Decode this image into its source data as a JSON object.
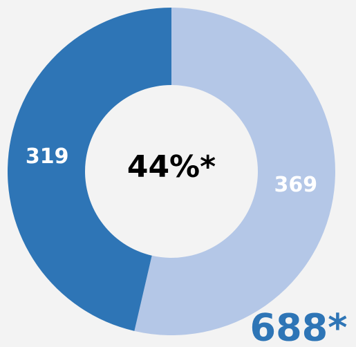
{
  "chart_data": {
    "type": "donut",
    "categories": [
      null,
      null
    ],
    "values": [
      369,
      319
    ],
    "colors": [
      "#b4c7e7",
      "#2e75b6"
    ],
    "center_label": "44%*",
    "total_label": "688*"
  }
}
